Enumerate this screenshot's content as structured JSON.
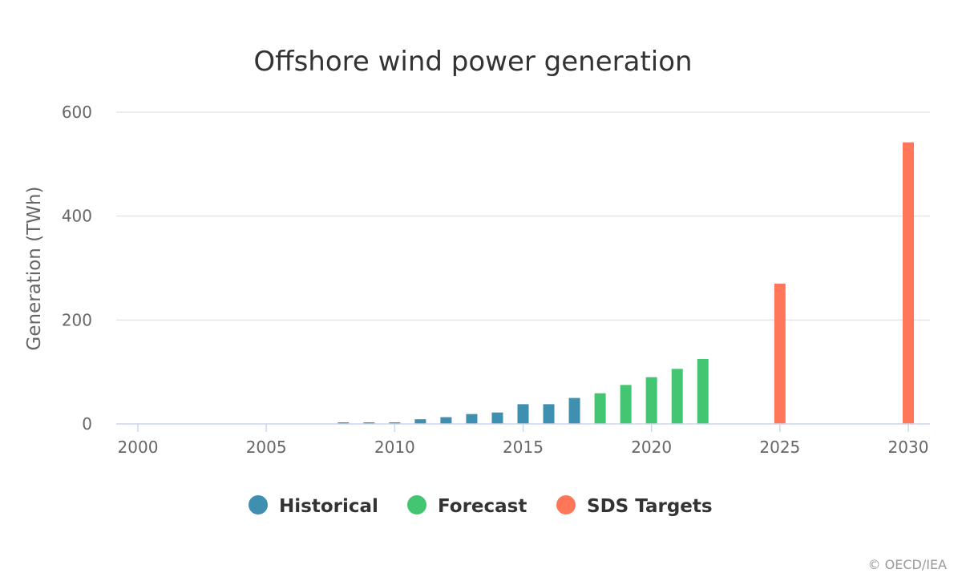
{
  "chart_data": {
    "type": "bar",
    "title": "Offshore wind power generation",
    "ylabel": "Generation (TWh)",
    "xlabel": "",
    "xlim": [
      2000,
      2030
    ],
    "ylim": [
      0,
      600
    ],
    "yticks": [
      0,
      200,
      400,
      600
    ],
    "xticks": [
      2000,
      2005,
      2010,
      2015,
      2020,
      2025,
      2030
    ],
    "grid": true,
    "legend_position": "bottom-center",
    "series": [
      {
        "name": "Historical",
        "color": "#3e8fb0",
        "x": [
          2008,
          2009,
          2010,
          2011,
          2012,
          2013,
          2014,
          2015,
          2016,
          2017
        ],
        "values": [
          3,
          3,
          3,
          9,
          13,
          19,
          22,
          38,
          38,
          50
        ]
      },
      {
        "name": "Forecast",
        "color": "#44c571",
        "x": [
          2018,
          2019,
          2020,
          2021,
          2022
        ],
        "values": [
          59,
          75,
          90,
          106,
          125
        ]
      },
      {
        "name": "SDS Targets",
        "color": "#fd7758",
        "x": [
          2025,
          2030
        ],
        "values": [
          270,
          542
        ]
      }
    ]
  },
  "credit": "© OECD/IEA"
}
